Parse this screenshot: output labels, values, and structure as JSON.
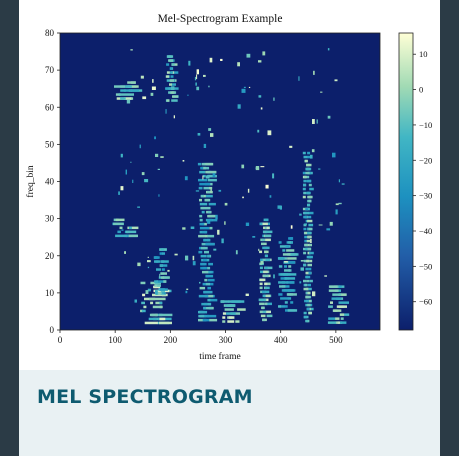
{
  "card": {
    "caption": "MEL SPECTROGRAM"
  },
  "chart_data": {
    "type": "heatmap",
    "title": "Mel-Spectrogram Example",
    "xlabel": "time frame",
    "ylabel": "freq_bin",
    "xlim": [
      0,
      580
    ],
    "ylim": [
      0,
      80
    ],
    "xticks": [
      0,
      100,
      200,
      300,
      400,
      500
    ],
    "yticks": [
      0,
      10,
      20,
      30,
      40,
      50,
      60,
      70,
      80
    ],
    "colorbar": {
      "ticks": [
        10,
        0,
        -10,
        -20,
        -30,
        -40,
        -50,
        -60
      ],
      "range": [
        -68,
        16
      ],
      "colormap": "YlGnBu_r"
    },
    "colors": {
      "low": "#0c1f6b",
      "high": "#ffffd6"
    },
    "energy_regions": [
      {
        "t": [
          96,
          155
        ],
        "f": [
          62,
          67
        ],
        "level": 0.9
      },
      {
        "t": [
          190,
          215
        ],
        "f": [
          62,
          74
        ],
        "level": 0.85
      },
      {
        "t": [
          145,
          205
        ],
        "f": [
          2,
          13
        ],
        "level": 0.95
      },
      {
        "t": [
          170,
          200
        ],
        "f": [
          10,
          22
        ],
        "level": 0.8
      },
      {
        "t": [
          95,
          145
        ],
        "f": [
          25,
          30
        ],
        "level": 0.85
      },
      {
        "t": [
          290,
          345
        ],
        "f": [
          2,
          8
        ],
        "level": 0.95
      },
      {
        "t": [
          360,
          385
        ],
        "f": [
          2,
          30
        ],
        "level": 0.9
      },
      {
        "t": [
          440,
          460
        ],
        "f": [
          2,
          48
        ],
        "level": 0.85
      },
      {
        "t": [
          485,
          525
        ],
        "f": [
          2,
          12
        ],
        "level": 0.9
      },
      {
        "t": [
          250,
          285
        ],
        "f": [
          2,
          45
        ],
        "level": 0.8
      },
      {
        "t": [
          395,
          435
        ],
        "f": [
          5,
          25
        ],
        "level": 0.8
      }
    ]
  }
}
